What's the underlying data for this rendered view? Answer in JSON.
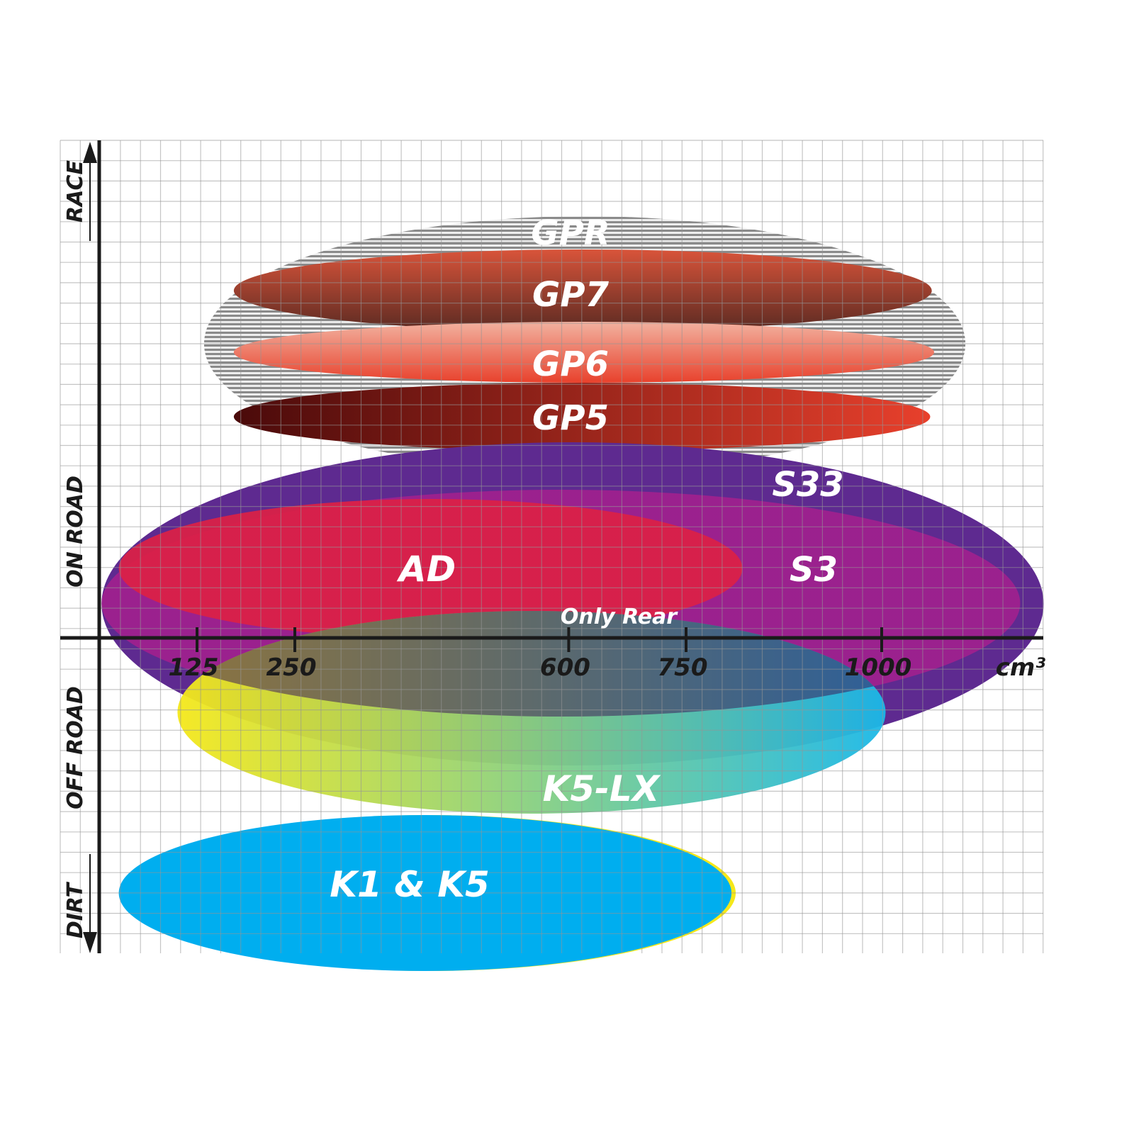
{
  "chart_data": {
    "type": "ellipse-range",
    "x_unit_label": "cm³",
    "x_ticks": [
      125,
      250,
      600,
      750,
      1000
    ],
    "xlim": [
      0,
      1210
    ],
    "y_axis_labels": [
      "RACE",
      "ON ROAD",
      "OFF ROAD",
      "DIRT"
    ],
    "grid": true,
    "series": [
      {
        "name": "GPR",
        "cc_range": [
          134,
          1107
        ],
        "colors": [
          "#9a9a9a",
          "#ffffff"
        ],
        "style": "striped"
      },
      {
        "name": "GP7",
        "cc_range": [
          172,
          1064
        ],
        "colors": [
          "#d9543a",
          "#5a2a22"
        ]
      },
      {
        "name": "GP6",
        "cc_range": [
          172,
          1067
        ],
        "colors": [
          "#f2b2a0",
          "#e8412c"
        ]
      },
      {
        "name": "GP5",
        "cc_range": [
          172,
          1062
        ],
        "colors": [
          "#4a0a0a",
          "#e8402c"
        ]
      },
      {
        "name": "S33",
        "cc_range": [
          3,
          1207
        ],
        "colors": [
          "#5e2a90",
          "#5e2a90"
        ]
      },
      {
        "name": "S3",
        "cc_range": [
          3,
          1177
        ],
        "colors": [
          "#a0208e",
          "#a0208e"
        ]
      },
      {
        "name": "AD",
        "cc_range": [
          25,
          822
        ],
        "colors": [
          "#dc2045",
          "#dc2045"
        ]
      },
      {
        "name": "K5-LX",
        "cc_range": [
          100,
          1005
        ],
        "colors": [
          "#f5e81a",
          "#1ab8e8"
        ],
        "note_label": "Only Rear"
      },
      {
        "name": "K1 & K5",
        "cc_range": [
          25,
          808
        ],
        "colors": [
          "#00aeef",
          "#00aeef"
        ]
      }
    ]
  }
}
